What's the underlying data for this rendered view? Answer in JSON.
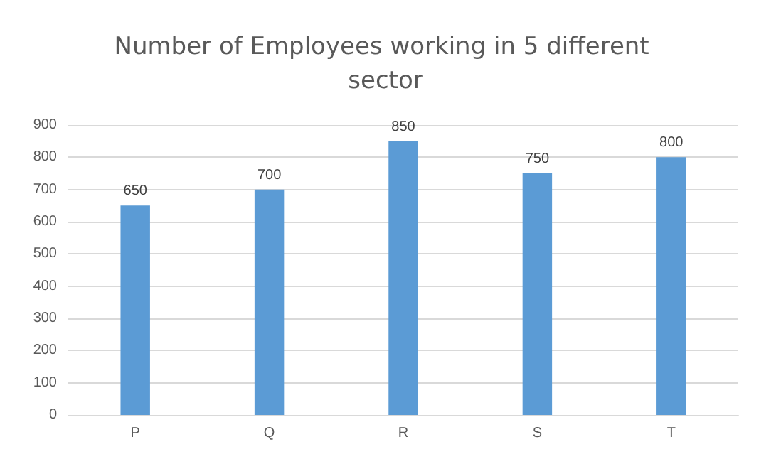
{
  "chart_data": {
    "type": "bar",
    "title": "Number of Employees working in 5 different sector",
    "categories": [
      "P",
      "Q",
      "R",
      "S",
      "T"
    ],
    "values": [
      650,
      700,
      850,
      750,
      800
    ],
    "color": "#5b9bd5",
    "ylim": [
      0,
      900
    ],
    "yticks": [
      0,
      100,
      200,
      300,
      400,
      500,
      600,
      700,
      800,
      900
    ],
    "grid": "y",
    "data_labels": true
  }
}
